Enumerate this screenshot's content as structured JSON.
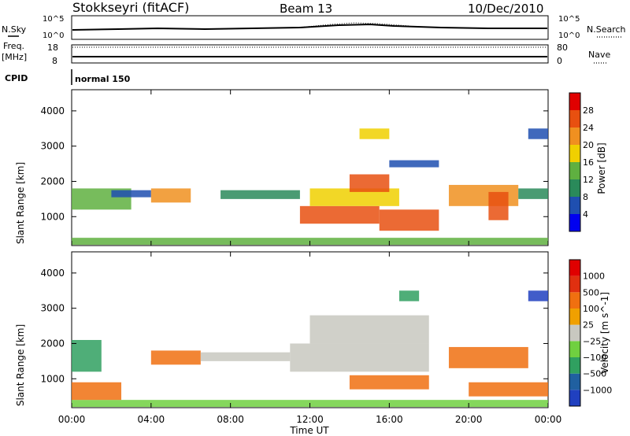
{
  "header": {
    "title": "Stokkseyri (fitACF)",
    "beam": "Beam 13",
    "date": "10/Dec/2010"
  },
  "top_panels": {
    "nsky_label": "N.Sky",
    "nsky_ticks": [
      "10^5",
      "10^0"
    ],
    "nsearch_label": "N.Search",
    "nsearch_ticks": [
      "10^5",
      "10^0"
    ],
    "freq_label": "Freq.",
    "freq_unit": "[MHz]",
    "freq_ticks": [
      "18",
      "8"
    ],
    "nave_label": "Nave",
    "nave_ticks": [
      "80",
      "0"
    ],
    "cpid_label": "CPID",
    "cpid_value": "normal 150"
  },
  "chart_data": [
    {
      "type": "heatmap",
      "ylabel": "Slant Range [km]",
      "y_ticks": [
        "4000",
        "3000",
        "2000",
        "1000"
      ],
      "y_tick_values": [
        4000,
        3000,
        2000,
        1000
      ],
      "ylim": [
        180,
        4600
      ],
      "colorbar": {
        "label": "Power [dB]",
        "tick_labels": [
          "28",
          "24",
          "20",
          "16",
          "12",
          "8",
          "4"
        ],
        "colors": [
          "#0000f0",
          "#1f4fb0",
          "#2a8a5a",
          "#5fb040",
          "#f0d000",
          "#f09020",
          "#e85010",
          "#e00000"
        ]
      },
      "bands": [
        {
          "t_start": 0.0,
          "t_end": 24.0,
          "r_start": 200,
          "r_end": 400,
          "level": 3
        },
        {
          "t_start": 0.0,
          "t_end": 3.0,
          "r_start": 1200,
          "r_end": 1800,
          "level": 3
        },
        {
          "t_start": 2.0,
          "t_end": 4.0,
          "r_start": 1550,
          "r_end": 1750,
          "level": 1
        },
        {
          "t_start": 4.0,
          "t_end": 6.0,
          "r_start": 1400,
          "r_end": 1800,
          "level": 5
        },
        {
          "t_start": 7.5,
          "t_end": 11.5,
          "r_start": 1500,
          "r_end": 1750,
          "level": 2
        },
        {
          "t_start": 11.5,
          "t_end": 15.5,
          "r_start": 800,
          "r_end": 1300,
          "level": 6
        },
        {
          "t_start": 12.0,
          "t_end": 16.5,
          "r_start": 1300,
          "r_end": 1800,
          "level": 4
        },
        {
          "t_start": 14.0,
          "t_end": 16.0,
          "r_start": 1700,
          "r_end": 2200,
          "level": 6
        },
        {
          "t_start": 15.5,
          "t_end": 18.5,
          "r_start": 600,
          "r_end": 1200,
          "level": 6
        },
        {
          "t_start": 16.0,
          "t_end": 18.5,
          "r_start": 2400,
          "r_end": 2600,
          "level": 1
        },
        {
          "t_start": 19.0,
          "t_end": 22.5,
          "r_start": 1300,
          "r_end": 1900,
          "level": 5
        },
        {
          "t_start": 21.0,
          "t_end": 22.0,
          "r_start": 900,
          "r_end": 1700,
          "level": 6
        },
        {
          "t_start": 22.5,
          "t_end": 24.0,
          "r_start": 1500,
          "r_end": 1800,
          "level": 2
        },
        {
          "t_start": 23.0,
          "t_end": 24.0,
          "r_start": 3200,
          "r_end": 3500,
          "level": 1
        },
        {
          "t_start": 14.5,
          "t_end": 16.0,
          "r_start": 3200,
          "r_end": 3500,
          "level": 4
        }
      ]
    },
    {
      "type": "heatmap",
      "ylabel": "Slant Range [km]",
      "y_ticks": [
        "4000",
        "3000",
        "2000",
        "1000"
      ],
      "y_tick_values": [
        4000,
        3000,
        2000,
        1000
      ],
      "ylim": [
        180,
        4600
      ],
      "colorbar": {
        "label": "Velocity [m s^-1]",
        "tick_labels": [
          "1000",
          "500",
          "100",
          "25",
          "−25",
          "−100",
          "−500",
          "−1000"
        ],
        "colors": [
          "#2040c0",
          "#2060a0",
          "#30a060",
          "#70d040",
          "#c8c8c0",
          "#f0a000",
          "#f07010",
          "#e03010",
          "#e00000"
        ]
      },
      "bands": [
        {
          "t_start": 0.0,
          "t_end": 24.0,
          "r_start": 200,
          "r_end": 400,
          "level": 3
        },
        {
          "t_start": 0.0,
          "t_end": 1.5,
          "r_start": 1200,
          "r_end": 2100,
          "level": 2
        },
        {
          "t_start": 0.0,
          "t_end": 2.5,
          "r_start": 400,
          "r_end": 900,
          "level": 6
        },
        {
          "t_start": 4.0,
          "t_end": 6.5,
          "r_start": 1400,
          "r_end": 1800,
          "level": 6
        },
        {
          "t_start": 6.5,
          "t_end": 11.0,
          "r_start": 1500,
          "r_end": 1750,
          "level": 4
        },
        {
          "t_start": 11.0,
          "t_end": 18.0,
          "r_start": 1200,
          "r_end": 2000,
          "level": 4
        },
        {
          "t_start": 12.0,
          "t_end": 18.0,
          "r_start": 2000,
          "r_end": 2800,
          "level": 4
        },
        {
          "t_start": 14.0,
          "t_end": 18.0,
          "r_start": 700,
          "r_end": 1100,
          "level": 6
        },
        {
          "t_start": 16.5,
          "t_end": 17.5,
          "r_start": 3200,
          "r_end": 3500,
          "level": 2
        },
        {
          "t_start": 19.0,
          "t_end": 23.0,
          "r_start": 1300,
          "r_end": 1900,
          "level": 6
        },
        {
          "t_start": 20.0,
          "t_end": 24.0,
          "r_start": 500,
          "r_end": 900,
          "level": 6
        },
        {
          "t_start": 23.0,
          "t_end": 24.0,
          "r_start": 3200,
          "r_end": 3500,
          "level": 0
        }
      ]
    }
  ],
  "x_axis": {
    "ticks": [
      "00:00",
      "04:00",
      "08:00",
      "12:00",
      "16:00",
      "20:00",
      "00:00"
    ],
    "tick_hours": [
      0,
      4,
      8,
      12,
      16,
      20,
      24
    ],
    "label": "Time UT"
  }
}
